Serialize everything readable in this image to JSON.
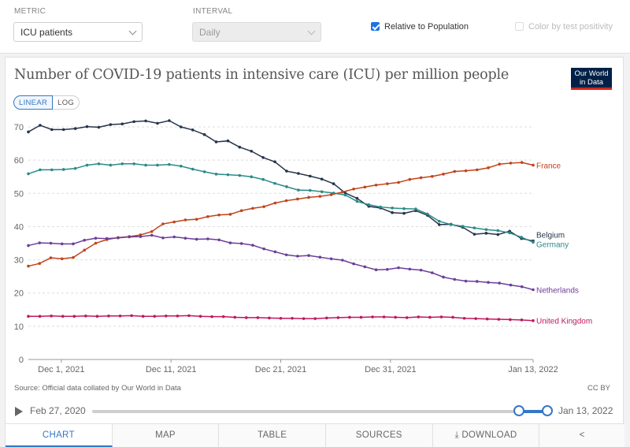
{
  "controls": {
    "metric_label": "METRIC",
    "metric_value": "ICU patients",
    "interval_label": "INTERVAL",
    "interval_value": "Daily",
    "relative_label": "Relative to Population",
    "positivity_label": "Color by test positivity"
  },
  "card": {
    "logo": "Our World in Data",
    "toggle_linear": "LINEAR",
    "toggle_log": "LOG",
    "source": "Source: Official data collated by Our World in Data",
    "license": "CC BY"
  },
  "timeline": {
    "start": "Feb 27, 2020",
    "end": "Jan 13, 2022"
  },
  "tabs": [
    "CHART",
    "MAP",
    "TABLE",
    "SOURCES",
    "DOWNLOAD",
    "share"
  ],
  "chart_data": {
    "type": "line",
    "title": "Number of COVID-19 patients in intensive care (ICU) per million people",
    "xlabel": "",
    "ylabel": "",
    "ylim": [
      0,
      70
    ],
    "yticks": [
      0,
      10,
      20,
      30,
      40,
      50,
      60,
      70
    ],
    "x_start": "2021-11-28",
    "xticks": [
      {
        "label": "Dec 1, 2021",
        "day": 3
      },
      {
        "label": "Dec 11, 2021",
        "day": 13
      },
      {
        "label": "Dec 21, 2021",
        "day": 23
      },
      {
        "label": "Dec 31, 2021",
        "day": 33
      },
      {
        "label": "Jan 13, 2022",
        "day": 46
      }
    ],
    "series": [
      {
        "name": "Belgium",
        "color": "#26344a",
        "values": [
          68.5,
          70.5,
          69.2,
          69.2,
          69.5,
          70.1,
          69.9,
          70.7,
          70.9,
          71.6,
          71.8,
          71.1,
          71.9,
          70.0,
          69.1,
          67.7,
          65.5,
          65.8,
          63.9,
          62.7,
          60.8,
          59.5,
          56.7,
          56.0,
          55.2,
          54.3,
          52.9,
          50.1,
          48.5,
          46.1,
          45.6,
          44.2,
          44.0,
          44.8,
          43.4,
          40.6,
          40.7,
          39.8,
          37.7,
          38.0,
          37.6,
          38.6,
          36.4,
          35.7
        ]
      },
      {
        "name": "Germany",
        "color": "#2a8b88",
        "values": [
          55.9,
          57.1,
          57.1,
          57.2,
          57.5,
          58.5,
          58.9,
          58.5,
          58.9,
          58.9,
          58.5,
          58.5,
          58.7,
          58.2,
          57.3,
          56.5,
          55.8,
          55.6,
          55.4,
          55.0,
          54.2,
          53.0,
          52.0,
          51.0,
          50.9,
          50.5,
          50.1,
          49.5,
          47.6,
          46.6,
          45.9,
          45.6,
          45.4,
          45.3,
          43.8,
          41.6,
          40.6,
          40.1,
          39.6,
          39.1,
          38.8,
          38.1,
          36.8,
          35.3
        ]
      },
      {
        "name": "France",
        "color": "#c0431b",
        "values": [
          28.1,
          28.9,
          30.6,
          30.3,
          30.7,
          32.9,
          35.0,
          36.1,
          36.7,
          37.0,
          37.5,
          38.5,
          40.8,
          41.4,
          42.0,
          42.2,
          43.0,
          43.5,
          43.7,
          44.8,
          45.5,
          46.0,
          47.1,
          47.8,
          48.3,
          48.8,
          49.1,
          49.6,
          50.4,
          51.3,
          51.9,
          52.5,
          52.9,
          53.3,
          54.2,
          54.7,
          55.1,
          55.8,
          56.6,
          56.8,
          57.1,
          57.7,
          58.8,
          59.1,
          59.3,
          58.5
        ]
      },
      {
        "name": "Netherlands",
        "color": "#6c3e9a",
        "values": [
          34.3,
          35.1,
          35.0,
          34.8,
          34.8,
          35.9,
          36.5,
          36.4,
          36.6,
          36.9,
          37.0,
          37.4,
          36.6,
          36.9,
          36.5,
          36.2,
          36.3,
          36.0,
          35.1,
          34.9,
          34.4,
          33.3,
          32.4,
          31.5,
          31.1,
          31.3,
          30.8,
          30.3,
          29.9,
          28.8,
          27.9,
          27.0,
          27.1,
          27.6,
          27.2,
          26.9,
          26.1,
          24.8,
          24.1,
          23.6,
          23.5,
          23.2,
          23.0,
          22.4,
          21.9,
          21.0
        ]
      },
      {
        "name": "United Kingdom",
        "color": "#c0175e",
        "values": [
          13.0,
          13.0,
          13.1,
          13.0,
          13.0,
          13.1,
          13.0,
          13.1,
          13.1,
          13.2,
          13.0,
          13.0,
          13.1,
          13.1,
          13.2,
          13.0,
          12.9,
          12.9,
          12.7,
          12.6,
          12.6,
          12.5,
          12.4,
          12.4,
          12.3,
          12.3,
          12.5,
          12.6,
          12.7,
          12.7,
          12.8,
          12.8,
          12.7,
          12.6,
          12.8,
          12.7,
          12.8,
          12.7,
          12.4,
          12.3,
          12.2,
          12.1,
          12.0,
          11.9,
          11.7
        ]
      }
    ]
  }
}
